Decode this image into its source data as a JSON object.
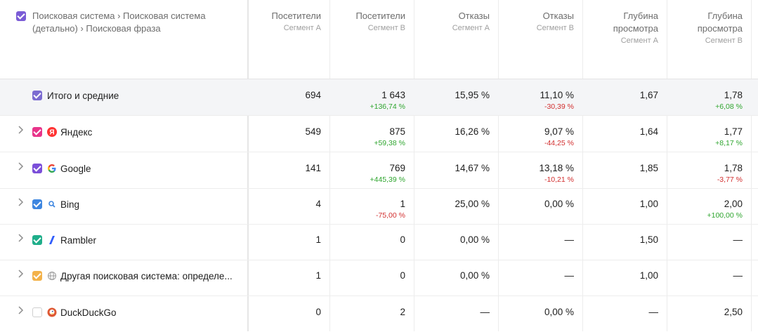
{
  "header": {
    "dimension_path": "Поисковая система › Поисковая система (детально) › Поисковая фраза",
    "columns": [
      {
        "title": "Посетители",
        "segment": "Сегмент A"
      },
      {
        "title": "Посетители",
        "segment": "Сегмент B"
      },
      {
        "title": "Отказы",
        "segment": "Сегмент A"
      },
      {
        "title": "Отказы",
        "segment": "Сегмент B"
      },
      {
        "title": "Глубина просмотра",
        "segment": "Сегмент A"
      },
      {
        "title": "Глубина просмотра",
        "segment": "Сегмент B"
      }
    ]
  },
  "colors": {
    "checkbox_header": "#7b5cd6",
    "checkbox_total": "#7b6bd1",
    "positive": "#2ea52e",
    "negative": "#d22f2f"
  },
  "rows": [
    {
      "name": "Итого и средние",
      "checkbox_color": "#7b6bd1",
      "icon": "",
      "visitors_a": "694",
      "visitors_b": "1 643",
      "visitors_delta": "+136,74 %",
      "bounce_a": "15,95 %",
      "bounce_b": "11,10 %",
      "bounce_delta": "-30,39 %",
      "depth_a": "1,67",
      "depth_b": "1,78",
      "depth_delta": "+6,08 %"
    },
    {
      "name": "Яндекс",
      "checkbox_color": "#e8348a",
      "icon": "yandex-icon",
      "visitors_a": "549",
      "visitors_b": "875",
      "visitors_delta": "+59,38 %",
      "bounce_a": "16,26 %",
      "bounce_b": "9,07 %",
      "bounce_delta": "-44,25 %",
      "depth_a": "1,64",
      "depth_b": "1,77",
      "depth_delta": "+8,17 %"
    },
    {
      "name": "Google",
      "checkbox_color": "#7b4fd9",
      "icon": "google-icon",
      "visitors_a": "141",
      "visitors_b": "769",
      "visitors_delta": "+445,39 %",
      "bounce_a": "14,67 %",
      "bounce_b": "13,18 %",
      "bounce_delta": "-10,21 %",
      "depth_a": "1,85",
      "depth_b": "1,78",
      "depth_delta": "-3,77 %"
    },
    {
      "name": "Bing",
      "checkbox_color": "#3d86e0",
      "icon": "bing-search-icon",
      "visitors_a": "4",
      "visitors_b": "1",
      "visitors_delta": "-75,00 %",
      "bounce_a": "25,00 %",
      "bounce_b": "0,00 %",
      "bounce_delta": "",
      "depth_a": "1,00",
      "depth_b": "2,00",
      "depth_delta": "+100,00 %"
    },
    {
      "name": "Rambler",
      "checkbox_color": "#1fae8a",
      "icon": "rambler-icon",
      "visitors_a": "1",
      "visitors_b": "0",
      "visitors_delta": "",
      "bounce_a": "0,00 %",
      "bounce_b": "—",
      "bounce_delta": "",
      "depth_a": "1,50",
      "depth_b": "—",
      "depth_delta": ""
    },
    {
      "name": "Другая поисковая система: определе...",
      "checkbox_color": "#f3b24a",
      "icon": "globe-icon",
      "visitors_a": "1",
      "visitors_b": "0",
      "visitors_delta": "",
      "bounce_a": "0,00 %",
      "bounce_b": "—",
      "bounce_delta": "",
      "depth_a": "1,00",
      "depth_b": "—",
      "depth_delta": ""
    },
    {
      "name": "DuckDuckGo",
      "checkbox_color": "",
      "icon": "duckduckgo-icon",
      "visitors_a": "0",
      "visitors_b": "2",
      "visitors_delta": "",
      "bounce_a": "—",
      "bounce_b": "0,00 %",
      "bounce_delta": "",
      "depth_a": "—",
      "depth_b": "2,50",
      "depth_delta": ""
    }
  ]
}
